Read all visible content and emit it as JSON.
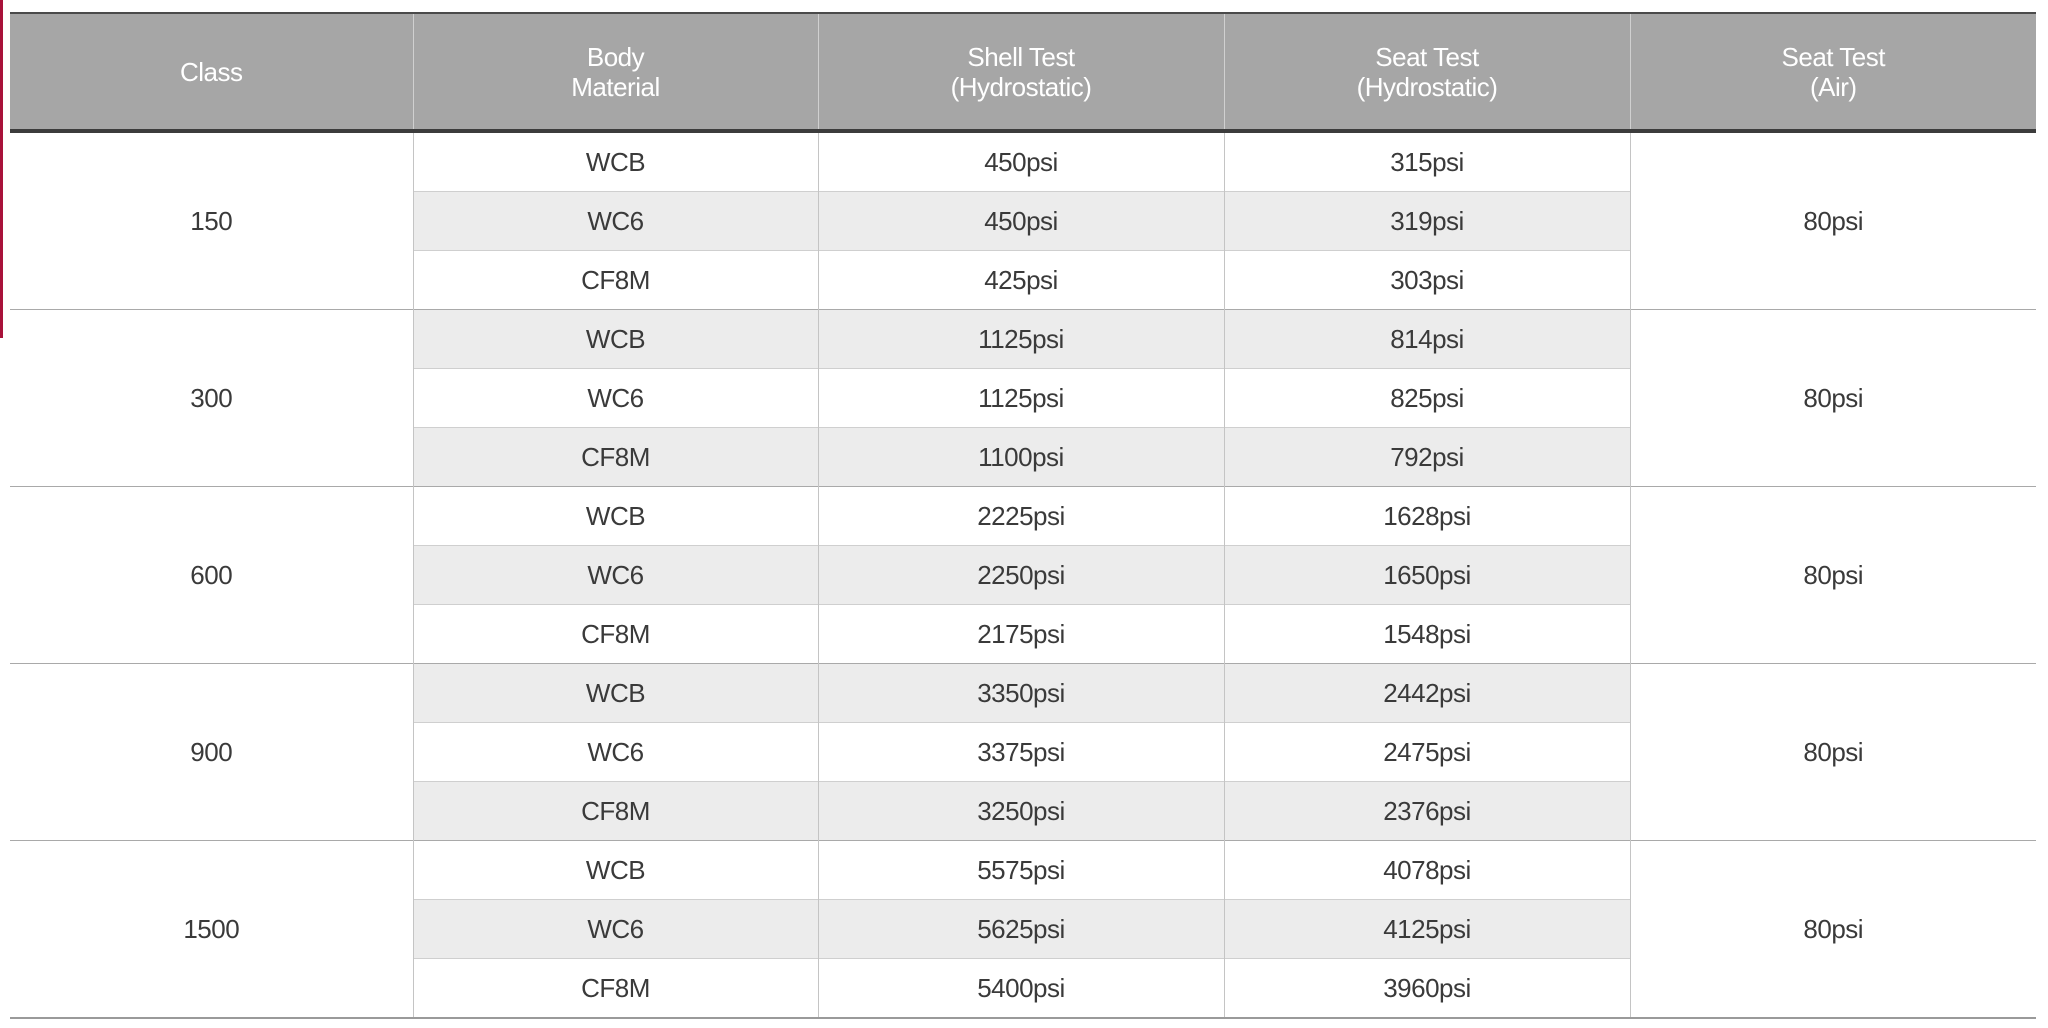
{
  "header": {
    "class": "Class",
    "body_line1": "Body",
    "body_line2": "Material",
    "shell_line1": "Shell Test",
    "shell_line2": "(Hydrostatic)",
    "seat_hydro_line1": "Seat Test",
    "seat_hydro_line2": "(Hydrostatic)",
    "seat_air_line1": "Seat Test",
    "seat_air_line2": "(Air)"
  },
  "groups": [
    {
      "class": "150",
      "air": "80psi",
      "rows": [
        {
          "material": "WCB",
          "shell": "450psi",
          "seat": "315psi"
        },
        {
          "material": "WC6",
          "shell": "450psi",
          "seat": "319psi"
        },
        {
          "material": "CF8M",
          "shell": "425psi",
          "seat": "303psi"
        }
      ]
    },
    {
      "class": "300",
      "air": "80psi",
      "rows": [
        {
          "material": "WCB",
          "shell": "1125psi",
          "seat": "814psi"
        },
        {
          "material": "WC6",
          "shell": "1125psi",
          "seat": "825psi"
        },
        {
          "material": "CF8M",
          "shell": "1100psi",
          "seat": "792psi"
        }
      ]
    },
    {
      "class": "600",
      "air": "80psi",
      "rows": [
        {
          "material": "WCB",
          "shell": "2225psi",
          "seat": "1628psi"
        },
        {
          "material": "WC6",
          "shell": "2250psi",
          "seat": "1650psi"
        },
        {
          "material": "CF8M",
          "shell": "2175psi",
          "seat": "1548psi"
        }
      ]
    },
    {
      "class": "900",
      "air": "80psi",
      "rows": [
        {
          "material": "WCB",
          "shell": "3350psi",
          "seat": "2442psi"
        },
        {
          "material": "WC6",
          "shell": "3375psi",
          "seat": "2475psi"
        },
        {
          "material": "CF8M",
          "shell": "3250psi",
          "seat": "2376psi"
        }
      ]
    },
    {
      "class": "1500",
      "air": "80psi",
      "rows": [
        {
          "material": "WCB",
          "shell": "5575psi",
          "seat": "4078psi"
        },
        {
          "material": "WC6",
          "shell": "5625psi",
          "seat": "4125psi"
        },
        {
          "material": "CF8M",
          "shell": "5400psi",
          "seat": "3960psi"
        }
      ]
    }
  ],
  "colors": {
    "header_bg": "#a6a6a6",
    "row_shade": "#ececec",
    "accent": "#a8123a"
  }
}
